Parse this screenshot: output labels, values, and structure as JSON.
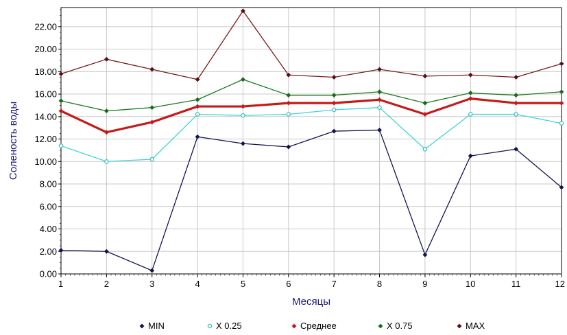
{
  "chart_data": {
    "type": "line",
    "xlabel": "Месяцы",
    "ylabel": "Соленость воды",
    "x": [
      1,
      2,
      3,
      4,
      5,
      6,
      7,
      8,
      9,
      10,
      11,
      12
    ],
    "xlim": [
      1,
      12
    ],
    "ylim": [
      0,
      23.7
    ],
    "yticks": [
      "0.00",
      "2.00",
      "4.00",
      "6.00",
      "8.00",
      "10.00",
      "12.00",
      "14.00",
      "16.00",
      "18.00",
      "20.00",
      "22.00"
    ],
    "xticks": [
      "1",
      "2",
      "3",
      "4",
      "5",
      "6",
      "7",
      "8",
      "9",
      "10",
      "11",
      "12"
    ],
    "grid": true,
    "legend_position": "bottom",
    "series": [
      {
        "name": "MIN",
        "color": "#14144f",
        "marker_color": "#14144f",
        "marker": "diamond",
        "values": [
          2.1,
          2.0,
          0.3,
          12.2,
          11.6,
          11.3,
          12.7,
          12.8,
          1.7,
          10.5,
          11.1,
          7.7
        ]
      },
      {
        "name": "X  0.25",
        "color": "#3fd4d4",
        "marker_color": "#3fbfbf",
        "marker": "circle-open",
        "values": [
          11.4,
          10.0,
          10.2,
          14.2,
          14.1,
          14.2,
          14.6,
          14.8,
          11.1,
          14.2,
          14.2,
          13.4
        ]
      },
      {
        "name": "Среднее",
        "color": "#c41a1a",
        "marker_color": "#c41a1a",
        "marker": "diamond",
        "bold": true,
        "values": [
          14.5,
          12.6,
          13.5,
          14.9,
          14.9,
          15.2,
          15.2,
          15.5,
          14.2,
          15.6,
          15.2,
          15.2
        ]
      },
      {
        "name": "X  0.75",
        "color": "#1a7a1a",
        "marker_color": "#1a6a1a",
        "marker": "diamond",
        "values": [
          15.4,
          14.5,
          14.8,
          15.5,
          17.3,
          15.9,
          15.9,
          16.2,
          15.2,
          16.1,
          15.9,
          16.2
        ]
      },
      {
        "name": "MAX",
        "color": "#7a1a1a",
        "marker_color": "#5a1010",
        "marker": "diamond",
        "values": [
          17.8,
          19.1,
          18.2,
          17.3,
          23.4,
          17.7,
          17.5,
          18.2,
          17.6,
          17.7,
          17.5,
          18.7
        ]
      }
    ]
  }
}
